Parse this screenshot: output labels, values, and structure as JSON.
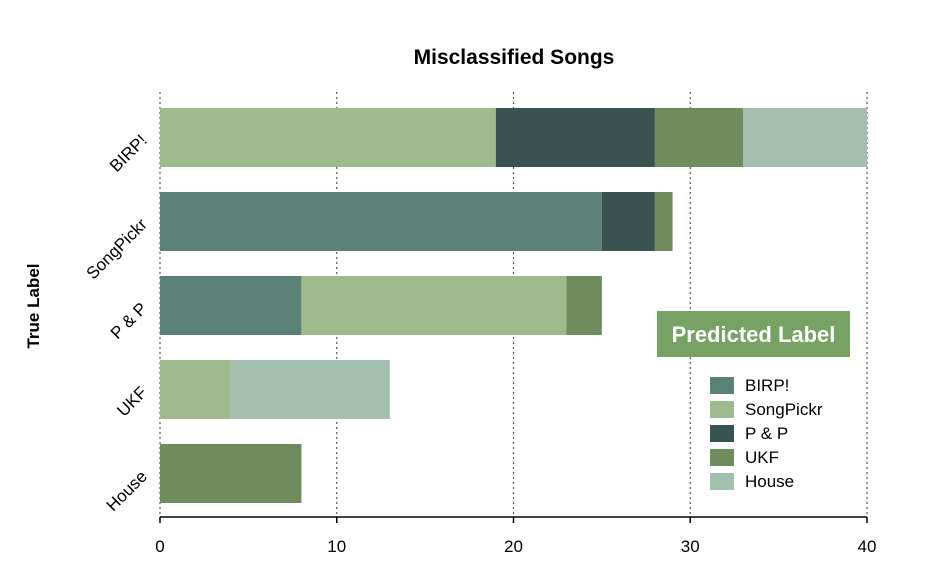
{
  "chart_data": {
    "type": "bar",
    "orientation": "horizontal",
    "stacked": true,
    "title": "Misclassified Songs",
    "xlabel": "",
    "ylabel": "True Label",
    "categories": [
      "BIRP!",
      "SongPickr",
      "P & P",
      "UKF",
      "House"
    ],
    "xlim": [
      0,
      40
    ],
    "xticks": [
      0,
      10,
      20,
      30,
      40
    ],
    "grid": "vertical-dotted",
    "legend": {
      "title": "Predicted Label",
      "position": "right",
      "title_background": "#76a363"
    },
    "series": [
      {
        "name": "BIRP!",
        "color": "#5a8077",
        "values": [
          0,
          25,
          8,
          0,
          0
        ]
      },
      {
        "name": "SongPickr",
        "color": "#9ebb8e",
        "values": [
          19,
          0,
          15,
          4,
          0
        ]
      },
      {
        "name": "P & P",
        "color": "#395350",
        "values": [
          9,
          3,
          0,
          0,
          0
        ]
      },
      {
        "name": "UKF",
        "color": "#6e8c5c",
        "values": [
          5,
          1,
          2,
          0,
          8
        ]
      },
      {
        "name": "House",
        "color": "#a3bfad",
        "values": [
          7,
          0,
          0,
          9,
          0
        ]
      }
    ]
  }
}
